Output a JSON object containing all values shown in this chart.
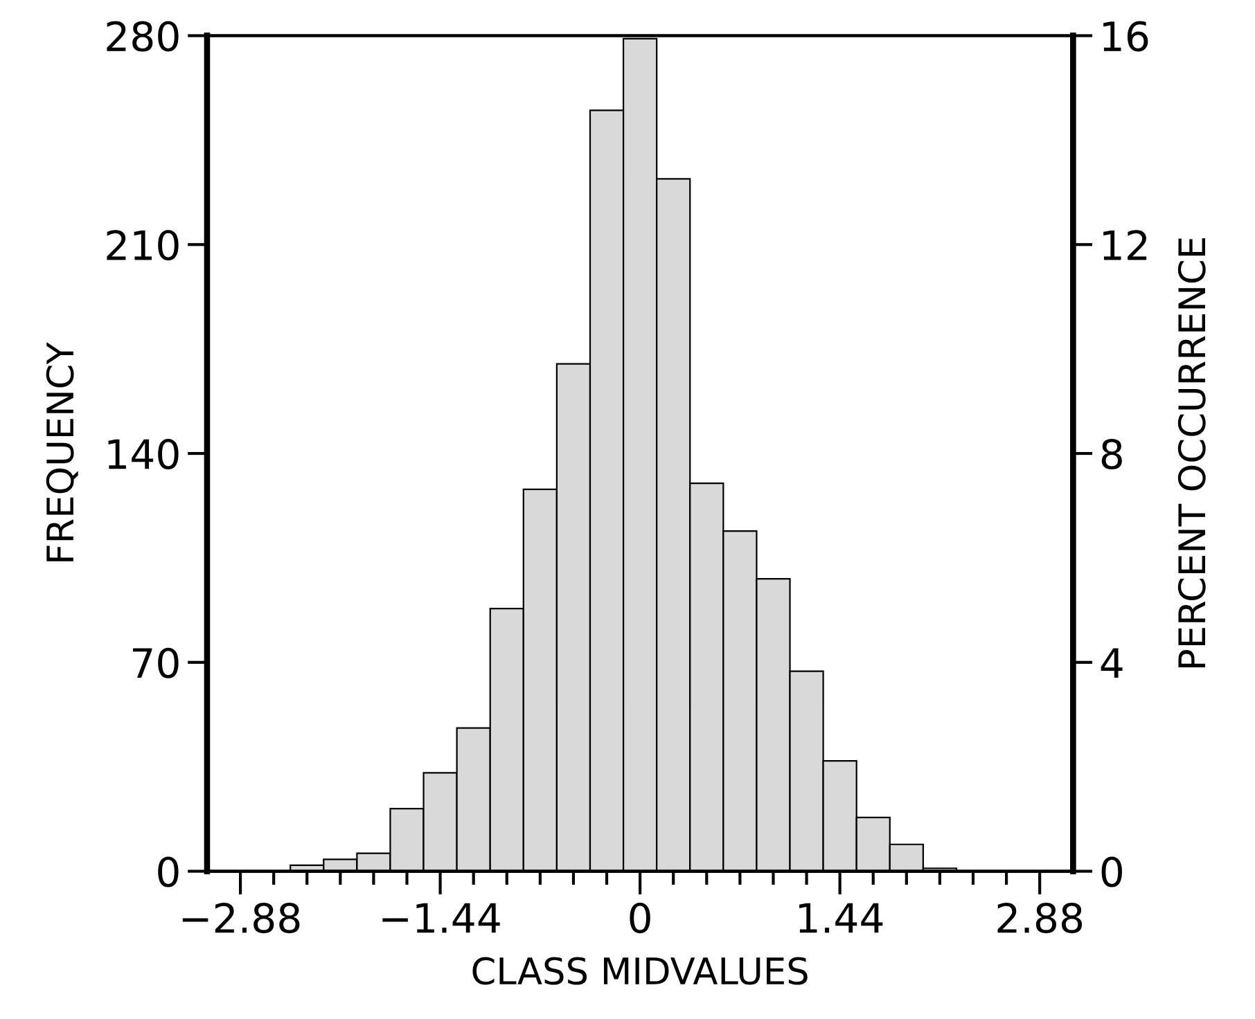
{
  "chart_data": {
    "type": "histogram",
    "xlabel": "CLASS MIDVALUES",
    "ylabel": "FREQUENCY",
    "y2label": "PERCENT OCCURRENCE",
    "bins": [
      -2.52,
      -2.28,
      -2.04,
      -1.8,
      -1.56,
      -1.32,
      -1.08,
      -0.84,
      -0.6,
      -0.36,
      -0.12,
      0.12,
      0.36,
      0.6,
      0.84,
      1.08,
      1.32,
      1.56,
      1.8,
      2.04,
      2.28
    ],
    "values": [
      2,
      4,
      6,
      21,
      33,
      48,
      88,
      128,
      170,
      255,
      279,
      232,
      130,
      114,
      98,
      67,
      37,
      18,
      9,
      1
    ],
    "color": "#d9d9d9",
    "xlim": [
      -3.12,
      3.12
    ],
    "xticks": [
      {
        "value": -2.88,
        "label": "−2.88"
      },
      {
        "value": -2.64,
        "label": null
      },
      {
        "value": -2.4,
        "label": null
      },
      {
        "value": -2.16,
        "label": null
      },
      {
        "value": -1.92,
        "label": null
      },
      {
        "value": -1.68,
        "label": null
      },
      {
        "value": -1.44,
        "label": "−1.44"
      },
      {
        "value": -1.2,
        "label": null
      },
      {
        "value": -0.96,
        "label": null
      },
      {
        "value": -0.72,
        "label": null
      },
      {
        "value": -0.48,
        "label": null
      },
      {
        "value": -0.24,
        "label": null
      },
      0,
      {
        "value": 0.24,
        "label": null
      },
      {
        "value": 0.48,
        "label": null
      },
      {
        "value": 0.72,
        "label": null
      },
      {
        "value": 0.96,
        "label": null
      },
      {
        "value": 1.2,
        "label": null
      },
      1.44,
      {
        "value": 1.68,
        "label": null
      },
      {
        "value": 1.92,
        "label": null
      },
      {
        "value": 2.16,
        "label": null
      },
      {
        "value": 2.4,
        "label": null
      },
      {
        "value": 2.64,
        "label": null
      },
      2.88
    ],
    "ylim": [
      0,
      280
    ],
    "yticks": [
      0,
      70,
      140,
      210,
      280
    ],
    "y2lim": [
      0,
      16
    ],
    "y2ticks": [
      0,
      4,
      8,
      12,
      16
    ],
    "grid": false
  }
}
